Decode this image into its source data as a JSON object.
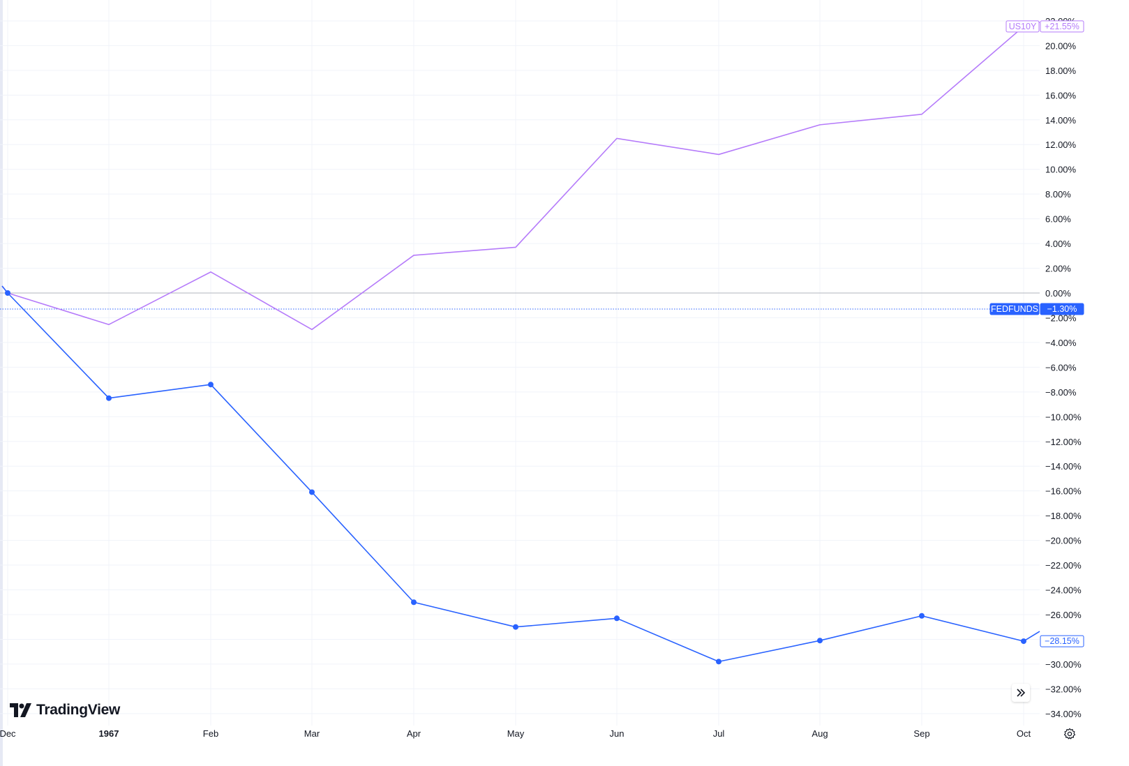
{
  "chart_data": {
    "type": "line",
    "x": [
      "Dec",
      "1967",
      "Feb",
      "Mar",
      "Apr",
      "May",
      "Jun",
      "Jul",
      "Aug",
      "Sep",
      "Oct"
    ],
    "ylim": [
      -35,
      23
    ],
    "y_ticks": [
      22,
      20,
      18,
      16,
      14,
      12,
      10,
      8,
      6,
      4,
      2,
      0,
      -2,
      -4,
      -6,
      -8,
      -10,
      -12,
      -14,
      -16,
      -18,
      -20,
      -22,
      -24,
      -26,
      -28,
      -30,
      -32,
      -34
    ],
    "y_tick_labels": [
      "22.00%",
      "20.00%",
      "18.00%",
      "16.00%",
      "14.00%",
      "12.00%",
      "10.00%",
      "8.00%",
      "6.00%",
      "4.00%",
      "2.00%",
      "0.00%",
      "−2.00%",
      "−4.00%",
      "−6.00%",
      "−8.00%",
      "−10.00%",
      "−12.00%",
      "−14.00%",
      "−16.00%",
      "−18.00%",
      "−20.00%",
      "−22.00%",
      "−24.00%",
      "−26.00%",
      "−28.00%",
      "−30.00%",
      "−32.00%",
      "−34.00%"
    ],
    "grid": true,
    "baseline": 0,
    "series": [
      {
        "name": "US10Y",
        "color": "#b57bfa",
        "markers": false,
        "values": [
          0.0,
          -2.55,
          1.7,
          -2.95,
          3.05,
          3.7,
          12.5,
          11.2,
          13.6,
          14.45,
          21.55
        ],
        "last_value_label": "+21.55%"
      },
      {
        "name": "FEDFUNDS",
        "color": "#2962ff",
        "markers": true,
        "values": [
          0.0,
          -8.5,
          -7.4,
          -16.1,
          -25.0,
          -27.0,
          -26.3,
          -29.8,
          -28.1,
          -26.1,
          -28.15
        ],
        "last_value_label": "−28.15%"
      }
    ],
    "crosshair": {
      "series": "FEDFUNDS",
      "value": -1.3,
      "label": "−1.30%"
    }
  },
  "branding": {
    "logo_text": "TradingView"
  },
  "icons": {
    "scroll_to_realtime": "double-chevron-right-icon",
    "settings": "gear-icon"
  },
  "colors": {
    "grid": "#f0f3fa",
    "zero_line": "#b2b5be",
    "axis_text": "#131722"
  }
}
